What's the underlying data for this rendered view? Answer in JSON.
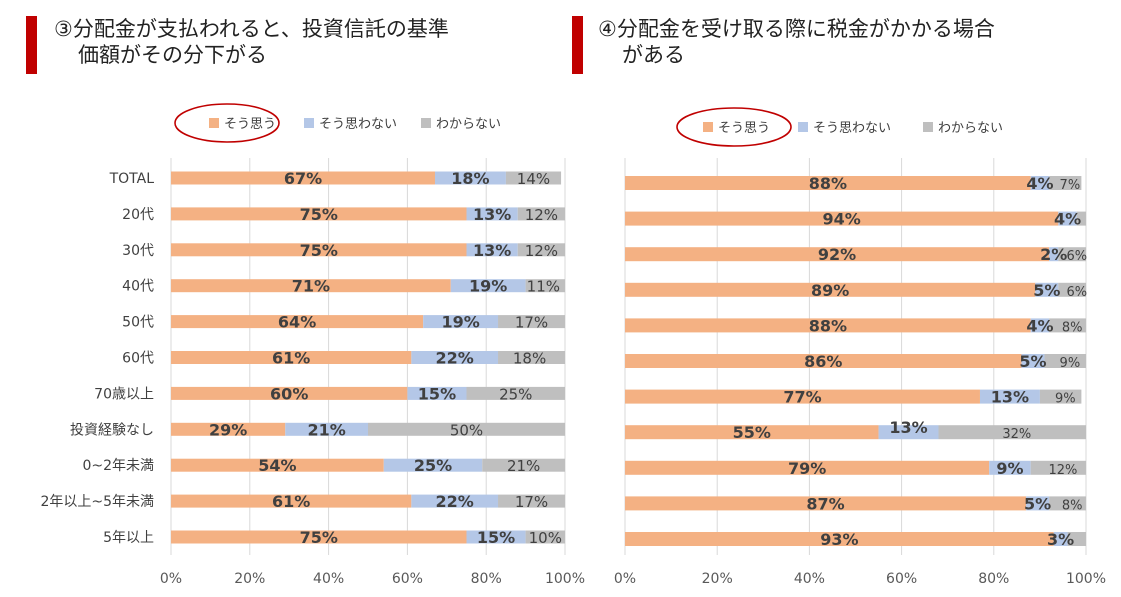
{
  "colors": {
    "agree": "#f4b183",
    "disagree": "#b4c7e7",
    "unknown": "#bfbfbf",
    "accent": "#c00000",
    "grid": "#d9d9d9"
  },
  "legend": {
    "agree": "そう思う",
    "disagree": "そう思わない",
    "unknown": "わからない"
  },
  "left": {
    "title_line1": "③分配金が支払われると、投資信託の基準",
    "title_line2": "価額がその分下がる"
  },
  "right": {
    "title_line1": "④分配金を受け取る際に税金がかかる場合",
    "title_line2": "がある"
  },
  "chart_data": [
    {
      "type": "bar",
      "stacked": true,
      "orientation": "horizontal",
      "categories": [
        "TOTAL",
        "20代",
        "30代",
        "40代",
        "50代",
        "60代",
        "70歳以上",
        "投資経験なし",
        "0~2年未満",
        "2年以上~5年未満",
        "5年以上"
      ],
      "series": [
        {
          "name": "そう思う",
          "values": [
            67,
            75,
            75,
            71,
            64,
            61,
            60,
            29,
            54,
            61,
            75
          ]
        },
        {
          "name": "そう思わない",
          "values": [
            18,
            13,
            13,
            19,
            19,
            22,
            15,
            21,
            25,
            22,
            15
          ]
        },
        {
          "name": "わからない",
          "values": [
            14,
            12,
            12,
            11,
            17,
            18,
            25,
            50,
            21,
            17,
            10
          ]
        }
      ],
      "x_ticks": [
        "0%",
        "20%",
        "40%",
        "60%",
        "80%",
        "100%"
      ],
      "xlim": [
        0,
        100
      ],
      "legend_position": "top",
      "highlighted_legend": "そう思う"
    },
    {
      "type": "bar",
      "stacked": true,
      "orientation": "horizontal",
      "categories": [
        "TOTAL",
        "20代",
        "30代",
        "40代",
        "50代",
        "60代",
        "70歳以上",
        "投資経験なし",
        "0~2年未満",
        "2年以上~5年未満",
        "5年以上"
      ],
      "series": [
        {
          "name": "そう思う",
          "values": [
            88,
            94,
            92,
            89,
            88,
            86,
            77,
            55,
            79,
            87,
            93
          ]
        },
        {
          "name": "そう思わない",
          "values": [
            4,
            4,
            2,
            5,
            4,
            5,
            13,
            13,
            9,
            5,
            3
          ]
        },
        {
          "name": "わからない",
          "values": [
            7,
            2,
            6,
            6,
            8,
            9,
            9,
            32,
            12,
            8,
            4
          ]
        }
      ],
      "labels": {
        "agree": [
          "88%",
          "94%",
          "92%",
          "89%",
          "88%",
          "86%",
          "77%",
          "55%",
          "79%",
          "87%",
          "93%"
        ],
        "disagree": [
          "4%",
          "4%",
          "2%",
          "5%",
          "4%",
          "5%",
          "13%",
          "13%",
          "9%",
          "5%",
          "3%"
        ],
        "unknown": [
          "7%",
          "",
          "6%",
          "6%",
          "8%",
          "9%",
          "9%",
          "32%",
          "12%",
          "8%",
          ""
        ]
      },
      "x_ticks": [
        "0%",
        "20%",
        "40%",
        "60%",
        "80%",
        "100%"
      ],
      "xlim": [
        0,
        100
      ],
      "legend_position": "top",
      "highlighted_legend": "そう思う"
    }
  ]
}
